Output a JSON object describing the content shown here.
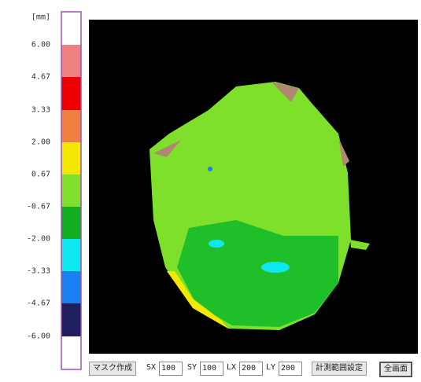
{
  "scale": {
    "unit": "[mm]",
    "labels": [
      "6.00",
      "4.67",
      "3.33",
      "2.00",
      "0.67",
      "-0.67",
      "-2.00",
      "-3.33",
      "-4.67",
      "-6.00"
    ]
  },
  "toolbar": {
    "mask_button": "マスク作成",
    "sx_label": "SX",
    "sx_value": "100",
    "sy_label": "SY",
    "sy_value": "100",
    "lx_label": "LX",
    "lx_value": "200",
    "ly_label": "LY",
    "ly_value": "200",
    "range_button": "計測範囲設定",
    "full_button": "全画面"
  }
}
